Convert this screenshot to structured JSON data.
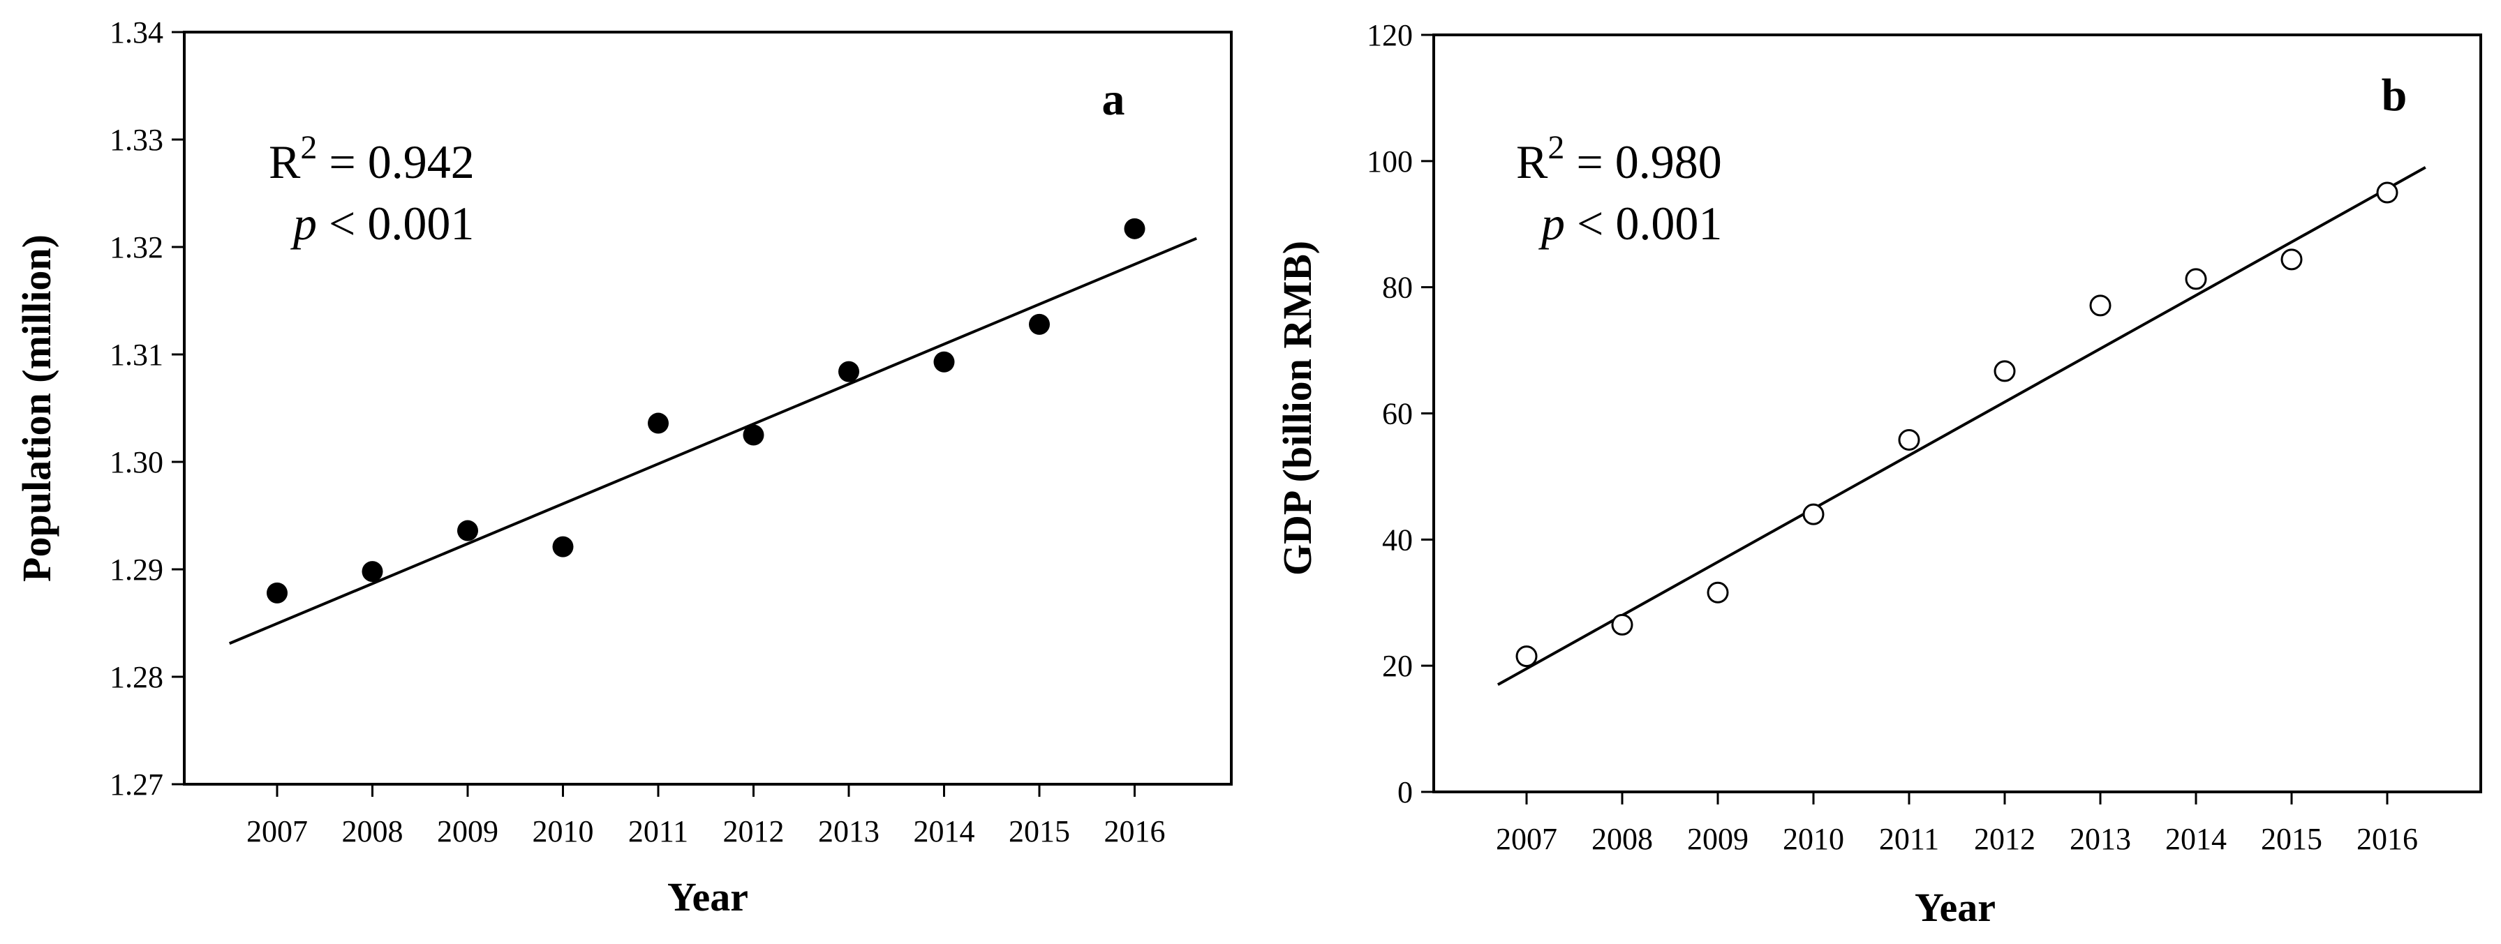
{
  "chart_data": [
    {
      "type": "scatter",
      "panel": "a",
      "xlabel": "Year",
      "ylabel": "Population (million)",
      "ylim": [
        1.27,
        1.34
      ],
      "yticks": [
        "1.27",
        "1.28",
        "1.29",
        "1.30",
        "1.31",
        "1.32",
        "1.33",
        "1.34"
      ],
      "categories": [
        "2007",
        "2008",
        "2009",
        "2010",
        "2011",
        "2012",
        "2013",
        "2014",
        "2015",
        "2016"
      ],
      "values": [
        1.2878,
        1.2898,
        1.2936,
        1.2921,
        1.3036,
        1.3025,
        1.3084,
        1.3093,
        1.3128,
        1.3217
      ],
      "marker": "filled-circle",
      "fit_line": {
        "start": [
          2006.5,
          1.2831
        ],
        "end": [
          2016.65,
          1.3208
        ]
      },
      "annotation": {
        "r2_label": "R",
        "r2_sup": "2",
        "r2_value": " = 0.942",
        "p_symbol": "p",
        "p_value": " < 0.001"
      },
      "grid": false
    },
    {
      "type": "scatter",
      "panel": "b",
      "xlabel": "Year",
      "ylabel": "GDP (billion RMB)",
      "ylim": [
        0,
        120
      ],
      "yticks": [
        "0",
        "20",
        "40",
        "60",
        "80",
        "100",
        "120"
      ],
      "categories": [
        "2007",
        "2008",
        "2009",
        "2010",
        "2011",
        "2012",
        "2013",
        "2014",
        "2015",
        "2016"
      ],
      "values": [
        21.5,
        26.5,
        31.6,
        44.0,
        55.8,
        66.7,
        77.1,
        81.3,
        84.4,
        95.0
      ],
      "marker": "open-circle",
      "fit_line": {
        "start": [
          2006.7,
          17.0
        ],
        "end": [
          2016.4,
          99.0
        ]
      },
      "annotation": {
        "r2_label": "R",
        "r2_sup": "2",
        "r2_value": " = 0.980",
        "p_symbol": "p",
        "p_value": " < 0.001"
      },
      "grid": false
    }
  ]
}
